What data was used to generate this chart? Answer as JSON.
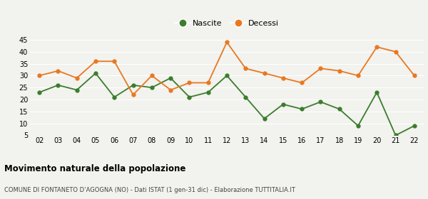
{
  "years": [
    "02",
    "03",
    "04",
    "05",
    "06",
    "07",
    "08",
    "09",
    "10",
    "11",
    "12",
    "13",
    "14",
    "15",
    "16",
    "17",
    "18",
    "19",
    "20",
    "21",
    "22"
  ],
  "nascite": [
    23,
    26,
    24,
    31,
    21,
    26,
    25,
    29,
    21,
    23,
    30,
    21,
    12,
    18,
    16,
    19,
    16,
    9,
    23,
    5,
    9
  ],
  "decessi": [
    30,
    32,
    29,
    36,
    36,
    22,
    30,
    24,
    27,
    27,
    44,
    33,
    31,
    29,
    27,
    33,
    32,
    30,
    42,
    40,
    30
  ],
  "nascite_color": "#3a7d2c",
  "decessi_color": "#e87820",
  "background_color": "#f2f2ee",
  "grid_color": "#ffffff",
  "title": "Movimento naturale della popolazione",
  "subtitle": "COMUNE DI FONTANETO D’AGOGNA (NO) - Dati ISTAT (1 gen-31 dic) - Elaborazione TUTTITALIA.IT",
  "legend_nascite": "Nascite",
  "legend_decessi": "Decessi",
  "ylim_min": 5,
  "ylim_max": 45,
  "yticks": [
    5,
    10,
    15,
    20,
    25,
    30,
    35,
    40,
    45
  ]
}
